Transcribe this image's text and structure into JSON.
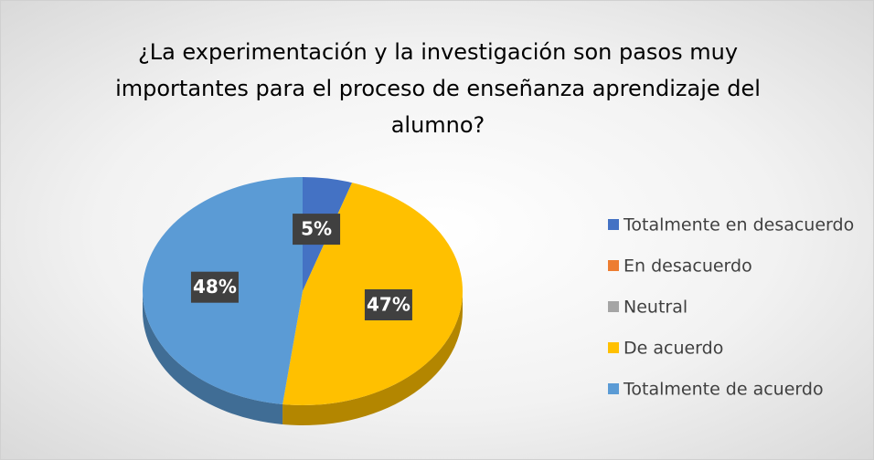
{
  "chart_data": {
    "type": "pie",
    "title": "¿La experimentación y la investigación son pasos muy importantes para el proceso de enseñanza aprendizaje del alumno?",
    "categories": [
      "Totalmente en desacuerdo",
      "En desacuerdo",
      "Neutral",
      "De acuerdo",
      "Totalmente de acuerdo"
    ],
    "values": [
      5,
      0,
      0,
      47,
      48
    ],
    "value_labels": [
      "5%",
      null,
      null,
      "47%",
      "48%"
    ],
    "colors": [
      "#4472c4",
      "#ed7d31",
      "#a5a5a5",
      "#ffc000",
      "#5b9bd5"
    ],
    "legend": "right"
  }
}
